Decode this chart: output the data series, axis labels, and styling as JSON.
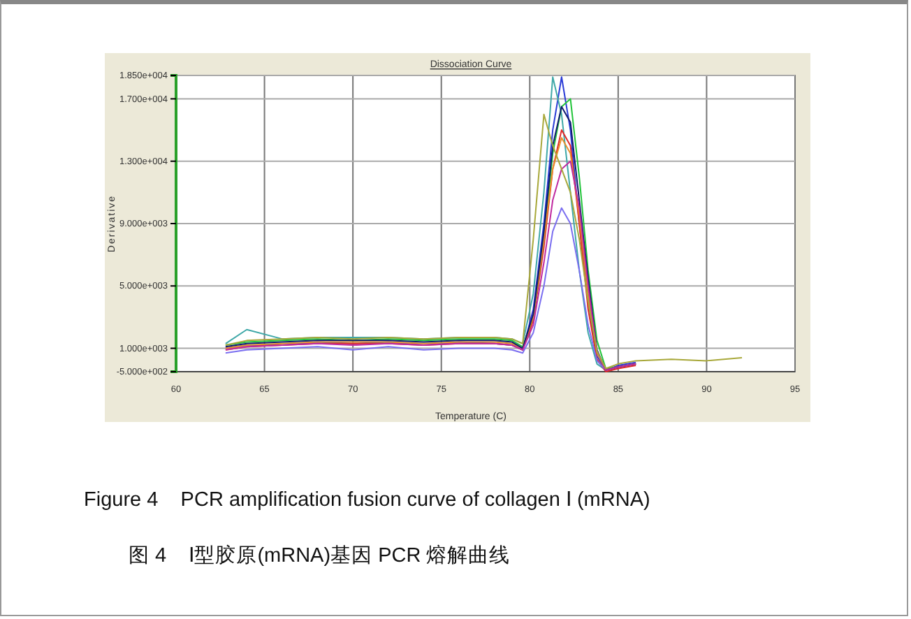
{
  "chart_data": {
    "type": "line",
    "title": "Dissociation Curve",
    "xlabel": "Temperature (C)",
    "ylabel": "Derivative",
    "annotations": [
      "Figure 4    PCR amplification fusion curve of collagen Ⅰ (mRNA)",
      "图 4    Ⅰ型胶原(mRNA)基因 PCR 熔解曲线"
    ],
    "xlim": [
      60,
      95
    ],
    "xticks": [
      60,
      65,
      70,
      75,
      80,
      85,
      90,
      95
    ],
    "ylim": [
      -500,
      18500
    ],
    "yticks": [
      {
        "value": -500,
        "label": "-5.000e+002"
      },
      {
        "value": 1000,
        "label": "1.000e+003"
      },
      {
        "value": 5000,
        "label": "5.000e+003"
      },
      {
        "value": 9000,
        "label": "9.000e+003"
      },
      {
        "value": 13000,
        "label": "1.300e+004"
      },
      {
        "value": 17000,
        "label": "1.700e+004"
      },
      {
        "value": 18500,
        "label": "1.850e+004"
      }
    ],
    "grid": true,
    "marker": "none",
    "line_style": "solid",
    "x": [
      62.8,
      64,
      66,
      68,
      70,
      72,
      74,
      76,
      78,
      79,
      79.6,
      80.2,
      80.8,
      81.3,
      81.8,
      82.3,
      82.8,
      83.3,
      83.8,
      84.3,
      85,
      86
    ],
    "series": [
      {
        "color": "#2a3bd6",
        "values": [
          1000,
          1200,
          1200,
          1400,
          1300,
          1400,
          1200,
          1400,
          1300,
          1200,
          900,
          3500,
          9000,
          15000,
          18400,
          15000,
          9000,
          4000,
          500,
          -400,
          -100,
          100
        ]
      },
      {
        "color": "#3fa8a8",
        "values": [
          1300,
          2200,
          1600,
          1700,
          1700,
          1700,
          1600,
          1700,
          1700,
          1600,
          1300,
          4500,
          11000,
          18400,
          16000,
          11000,
          6000,
          2000,
          0,
          -400,
          -200,
          0
        ]
      },
      {
        "color": "#e02828",
        "values": [
          900,
          1100,
          1200,
          1300,
          1300,
          1300,
          1200,
          1300,
          1300,
          1200,
          900,
          2800,
          7500,
          12500,
          15000,
          14000,
          9000,
          3500,
          300,
          -500,
          -300,
          -100
        ]
      },
      {
        "color": "#22c43a",
        "values": [
          1200,
          1400,
          1500,
          1600,
          1500,
          1600,
          1500,
          1600,
          1600,
          1500,
          1100,
          3000,
          8000,
          13500,
          16500,
          17000,
          12000,
          6000,
          1500,
          -300,
          -200,
          0
        ]
      },
      {
        "color": "#7a6ef0",
        "values": [
          700,
          900,
          1000,
          1100,
          900,
          1100,
          900,
          1000,
          1000,
          900,
          700,
          2000,
          5000,
          8500,
          10000,
          9000,
          6000,
          2500,
          200,
          -400,
          -200,
          0
        ]
      },
      {
        "color": "#e8902a",
        "values": [
          1000,
          1200,
          1300,
          1400,
          1400,
          1400,
          1300,
          1400,
          1400,
          1300,
          1000,
          3000,
          8000,
          12500,
          14500,
          13500,
          9500,
          4500,
          700,
          -400,
          -200,
          0
        ]
      },
      {
        "color": "#101a6e",
        "values": [
          1100,
          1300,
          1400,
          1500,
          1500,
          1500,
          1400,
          1500,
          1500,
          1400,
          1000,
          3200,
          8500,
          14000,
          16500,
          15500,
          10500,
          5500,
          900,
          -400,
          -200,
          0
        ]
      },
      {
        "color": "#c02aa0",
        "values": [
          900,
          1100,
          1200,
          1300,
          1200,
          1300,
          1200,
          1300,
          1300,
          1200,
          900,
          2500,
          6500,
          10500,
          12500,
          13000,
          10000,
          5000,
          800,
          -400,
          -200,
          0
        ]
      },
      {
        "color": "#a8a83a",
        "x": [
          62.8,
          64,
          66,
          68,
          70,
          72,
          74,
          76,
          78,
          79,
          79.6,
          80.2,
          80.8,
          81.3,
          81.8,
          82.3,
          82.8,
          83.3,
          83.8,
          84.3,
          85,
          86,
          88,
          90,
          92
        ],
        "values": [
          1200,
          1500,
          1600,
          1700,
          1600,
          1700,
          1600,
          1700,
          1700,
          1600,
          1300,
          8000,
          16000,
          14000,
          12500,
          11000,
          8000,
          4000,
          800,
          -300,
          0,
          200,
          300,
          200,
          400
        ]
      }
    ]
  }
}
